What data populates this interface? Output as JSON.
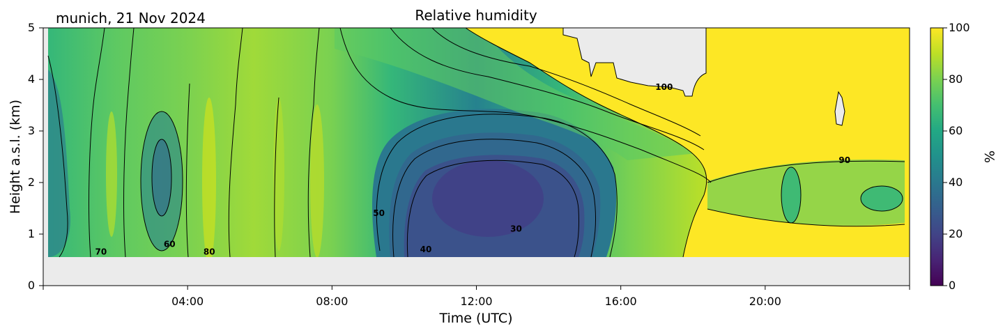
{
  "chart_data": {
    "type": "heatmap",
    "title": "Relative humidity",
    "location_date": "munich, 21 Nov 2024",
    "xlabel": "Time (UTC)",
    "ylabel": "Height a.s.l. (km)",
    "x_ticks": [
      "04:00",
      "08:00",
      "12:00",
      "16:00",
      "20:00"
    ],
    "x_tick_hours": [
      4,
      8,
      12,
      16,
      20
    ],
    "xlim_hours": [
      0,
      24
    ],
    "y_ticks": [
      "0",
      "1",
      "2",
      "3",
      "4",
      "5"
    ],
    "y_tick_values": [
      0,
      1,
      2,
      3,
      4,
      5
    ],
    "ylim": [
      0,
      5
    ],
    "data_bottom_km": 0.55,
    "colorbar": {
      "label": "%",
      "ticks": [
        "0",
        "20",
        "40",
        "60",
        "80",
        "100"
      ],
      "tick_values": [
        0,
        20,
        40,
        60,
        80,
        100
      ],
      "range": [
        0,
        100
      ],
      "colormap": "viridis"
    },
    "contour_labels": [
      {
        "text": "70",
        "hour": 1.6,
        "km": 0.6
      },
      {
        "text": "60",
        "hour": 3.5,
        "km": 0.75
      },
      {
        "text": "80",
        "hour": 4.6,
        "km": 0.6
      },
      {
        "text": "50",
        "hour": 9.3,
        "km": 1.35
      },
      {
        "text": "40",
        "hour": 10.6,
        "km": 0.65
      },
      {
        "text": "30",
        "hour": 13.1,
        "km": 1.05
      },
      {
        "text": "100",
        "hour": 17.2,
        "km": 3.8
      },
      {
        "text": "90",
        "hour": 22.2,
        "km": 2.38
      }
    ],
    "humidity_profile_hours": [
      0,
      1,
      2,
      3,
      4,
      5,
      6,
      7,
      8,
      9,
      10,
      11,
      12,
      13,
      14,
      15,
      16,
      17,
      18,
      19,
      20,
      21,
      22,
      23,
      24
    ],
    "humidity_at_2km": [
      45,
      55,
      60,
      50,
      70,
      80,
      75,
      80,
      78,
      55,
      35,
      30,
      28,
      25,
      28,
      45,
      65,
      75,
      80,
      70,
      78,
      70,
      85,
      78,
      75
    ],
    "humidity_at_4km": [
      60,
      65,
      65,
      70,
      72,
      80,
      78,
      80,
      82,
      70,
      68,
      65,
      60,
      62,
      75,
      88,
      95,
      100,
      100,
      100,
      100,
      100,
      100,
      100,
      100
    ],
    "colors": {
      "missing": "#ebebeb",
      "saturated": "#fde725",
      "contour": "#000000"
    }
  }
}
